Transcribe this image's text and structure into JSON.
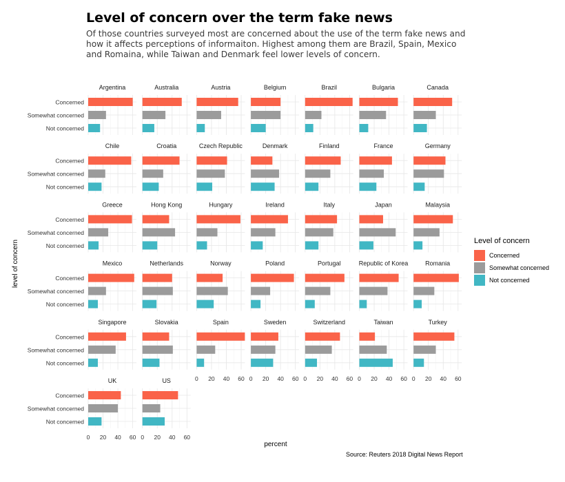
{
  "title": "Level of concern over the term fake news",
  "subtitle": "Of those countries surveyed most are concerned about the use of the term fake news and how it affects perceptions of informaiton. Highest among them are Brazil, Spain, Mexico and Romaina, while Taiwan and Denmark feel lower levels of concern.",
  "source": "Source: Reuters 2018 Digital News Report",
  "colors": {
    "Concerned": "#fa6349",
    "Somewhat concerned": "#9b9b9b",
    "Not concerned": "#41b7c4"
  },
  "chart_data": {
    "type": "bar",
    "orientation": "horizontal",
    "facets": true,
    "xlabel": "percent",
    "ylabel": "level of concern",
    "xlim": [
      0,
      65
    ],
    "xticks": [
      0,
      20,
      40,
      60
    ],
    "categories": [
      "Concerned",
      "Somewhat concerned",
      "Not concerned"
    ],
    "legend": {
      "title": "Level of concern",
      "position": "right",
      "entries": [
        "Concerned",
        "Somewhat concerned",
        "Not concerned"
      ]
    },
    "grid": true,
    "panels": [
      {
        "name": "Argentina",
        "values": [
          60,
          24,
          16
        ]
      },
      {
        "name": "Australia",
        "values": [
          53,
          31,
          16
        ]
      },
      {
        "name": "Austria",
        "values": [
          56,
          33,
          11
        ]
      },
      {
        "name": "Belgium",
        "values": [
          40,
          40,
          20
        ]
      },
      {
        "name": "Brazil",
        "values": [
          64,
          22,
          11
        ]
      },
      {
        "name": "Bulgaria",
        "values": [
          52,
          36,
          12
        ]
      },
      {
        "name": "Canada",
        "values": [
          52,
          30,
          18
        ]
      },
      {
        "name": "Chile",
        "values": [
          58,
          23,
          18
        ]
      },
      {
        "name": "Croatia",
        "values": [
          50,
          28,
          22
        ]
      },
      {
        "name": "Czech Republic",
        "values": [
          41,
          38,
          21
        ]
      },
      {
        "name": "Denmark",
        "values": [
          29,
          38,
          32
        ]
      },
      {
        "name": "Finland",
        "values": [
          48,
          34,
          18
        ]
      },
      {
        "name": "France",
        "values": [
          44,
          33,
          23
        ]
      },
      {
        "name": "Germany",
        "values": [
          43,
          41,
          15
        ]
      },
      {
        "name": "Greece",
        "values": [
          59,
          27,
          14
        ]
      },
      {
        "name": "Hong Kong",
        "values": [
          36,
          44,
          20
        ]
      },
      {
        "name": "Hungary",
        "values": [
          59,
          28,
          14
        ]
      },
      {
        "name": "Ireland",
        "values": [
          50,
          33,
          16
        ]
      },
      {
        "name": "Italy",
        "values": [
          43,
          38,
          18
        ]
      },
      {
        "name": "Japan",
        "values": [
          32,
          49,
          19
        ]
      },
      {
        "name": "Malaysia",
        "values": [
          53,
          35,
          12
        ]
      },
      {
        "name": "Mexico",
        "values": [
          62,
          24,
          13
        ]
      },
      {
        "name": "Netherlands",
        "values": [
          40,
          41,
          19
        ]
      },
      {
        "name": "Norway",
        "values": [
          35,
          42,
          23
        ]
      },
      {
        "name": "Poland",
        "values": [
          58,
          26,
          13
        ]
      },
      {
        "name": "Portugal",
        "values": [
          53,
          34,
          13
        ]
      },
      {
        "name": "Republic of Korea",
        "values": [
          53,
          38,
          10
        ]
      },
      {
        "name": "Romania",
        "values": [
          61,
          28,
          11
        ]
      },
      {
        "name": "Singapore",
        "values": [
          51,
          37,
          13
        ]
      },
      {
        "name": "Slovakia",
        "values": [
          36,
          41,
          23
        ]
      },
      {
        "name": "Spain",
        "values": [
          65,
          25,
          10
        ]
      },
      {
        "name": "Sweden",
        "values": [
          37,
          33,
          30
        ]
      },
      {
        "name": "Switzerland",
        "values": [
          47,
          36,
          16
        ]
      },
      {
        "name": "Taiwan",
        "values": [
          21,
          37,
          45
        ]
      },
      {
        "name": "Turkey",
        "values": [
          55,
          30,
          14
        ]
      },
      {
        "name": "UK",
        "values": [
          44,
          40,
          18
        ]
      },
      {
        "name": "US",
        "values": [
          48,
          24,
          30
        ]
      }
    ]
  }
}
